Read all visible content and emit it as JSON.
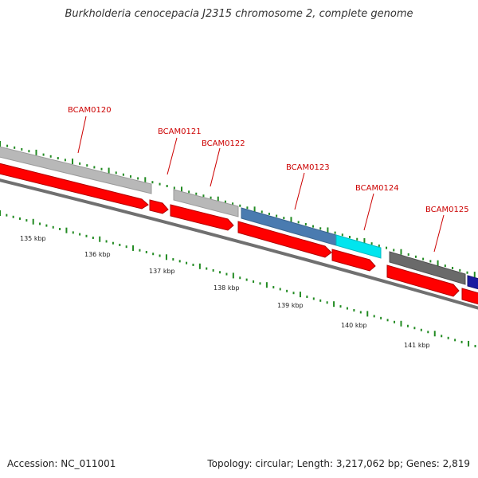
{
  "title": "Burkholderia cenocepacia J2315 chromosome 2, complete genome",
  "footer": {
    "accession": "Accession: NC_011001",
    "summary": "Topology: circular; Length: 3,217,062 bp; Genes: 2,819"
  },
  "colors": {
    "cds": "#ff0000",
    "backbone": "#808080",
    "tick": "#228B22",
    "gene_label": "#cc0000",
    "gray_feature": "#b4b4b4",
    "dark_gray_feature": "#6a6a6a",
    "steel_blue_feature": "#4a7bb0",
    "cyan_feature": "#00e5ee",
    "navy_feature": "#1a1aa0"
  },
  "kbp_labels": [
    "135 kbp",
    "136 kbp",
    "137 kbp",
    "138 kbp",
    "139 kbp",
    "140 kbp",
    "141 kbp"
  ],
  "gene_labels": [
    "BCAM0120",
    "BCAM0121",
    "BCAM0122",
    "BCAM0123",
    "BCAM0124",
    "BCAM0125"
  ]
}
